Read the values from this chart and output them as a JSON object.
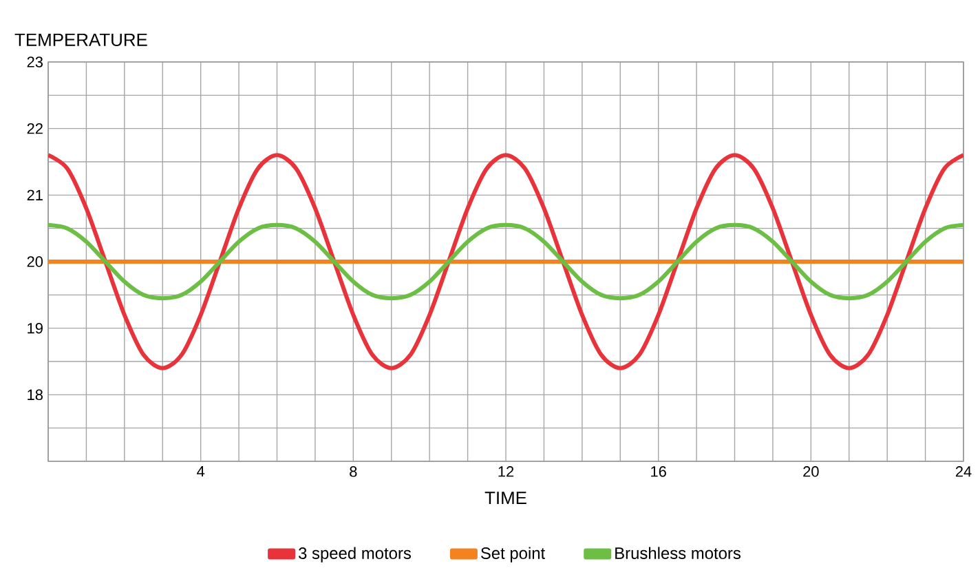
{
  "chart_data": {
    "type": "line",
    "ylabel": "TEMPERATURE",
    "xlabel": "TIME",
    "xlim": [
      0,
      24
    ],
    "ylim": [
      17,
      23
    ],
    "xticks": [
      {
        "value": 0,
        "label": null
      },
      {
        "value": 1,
        "label": null
      },
      {
        "value": 2,
        "label": null
      },
      {
        "value": 3,
        "label": null
      },
      4,
      {
        "value": 5,
        "label": null
      },
      {
        "value": 6,
        "label": null
      },
      {
        "value": 7,
        "label": null
      },
      8,
      {
        "value": 9,
        "label": null
      },
      {
        "value": 10,
        "label": null
      },
      {
        "value": 11,
        "label": null
      },
      12,
      {
        "value": 13,
        "label": null
      },
      {
        "value": 14,
        "label": null
      },
      {
        "value": 15,
        "label": null
      },
      16,
      {
        "value": 17,
        "label": null
      },
      {
        "value": 18,
        "label": null
      },
      {
        "value": 19,
        "label": null
      },
      20,
      {
        "value": 21,
        "label": null
      },
      {
        "value": 22,
        "label": null
      },
      {
        "value": 23,
        "label": null
      },
      24
    ],
    "yticks": [
      {
        "value": 17,
        "label": null
      },
      {
        "value": 17.5,
        "label": null
      },
      18,
      {
        "value": 18.5,
        "label": null
      },
      19,
      {
        "value": 19.5,
        "label": null
      },
      20,
      {
        "value": 20.5,
        "label": null
      },
      21,
      {
        "value": 21.5,
        "label": null
      },
      22,
      {
        "value": 22.5,
        "label": null
      },
      23
    ],
    "grid": true,
    "legend": "bottom",
    "series": [
      {
        "name": "3 speed motors",
        "color": "#e8333a",
        "x": [
          0,
          0.5,
          1,
          1.5,
          2,
          2.5,
          3,
          3.5,
          4,
          4.5,
          5,
          5.5,
          6,
          6.5,
          7,
          7.5,
          8,
          8.5,
          9,
          9.5,
          10,
          10.5,
          11,
          11.5,
          12,
          12.5,
          13,
          13.5,
          14,
          14.5,
          15,
          15.5,
          16,
          16.5,
          17,
          17.5,
          18,
          18.5,
          19,
          19.5,
          20,
          20.5,
          21,
          21.5,
          22,
          22.5,
          23,
          23.5,
          24
        ],
        "values": [
          21.6,
          21.4,
          20.8,
          20.0,
          19.2,
          18.6,
          18.4,
          18.6,
          19.2,
          20.0,
          20.8,
          21.4,
          21.6,
          21.4,
          20.8,
          20.0,
          19.2,
          18.6,
          18.4,
          18.6,
          19.2,
          20.0,
          20.8,
          21.4,
          21.6,
          21.4,
          20.8,
          20.0,
          19.2,
          18.6,
          18.4,
          18.6,
          19.2,
          20.0,
          20.8,
          21.4,
          21.6,
          21.4,
          20.8,
          20.0,
          19.2,
          18.6,
          18.4,
          18.6,
          19.2,
          20.0,
          20.8,
          21.4,
          21.6
        ]
      },
      {
        "name": "Set point",
        "color": "#f58220",
        "x": [
          0,
          24
        ],
        "values": [
          20,
          20
        ]
      },
      {
        "name": "Brushless motors",
        "color": "#6dbe45",
        "x": [
          0,
          0.5,
          1,
          1.5,
          2,
          2.5,
          3,
          3.5,
          4,
          4.5,
          5,
          5.5,
          6,
          6.5,
          7,
          7.5,
          8,
          8.5,
          9,
          9.5,
          10,
          10.5,
          11,
          11.5,
          12,
          12.5,
          13,
          13.5,
          14,
          14.5,
          15,
          15.5,
          16,
          16.5,
          17,
          17.5,
          18,
          18.5,
          19,
          19.5,
          20,
          20.5,
          21,
          21.5,
          22,
          22.5,
          23,
          23.5,
          24
        ],
        "values": [
          20.55,
          20.5,
          20.3,
          20.0,
          19.7,
          19.5,
          19.45,
          19.5,
          19.7,
          20.0,
          20.3,
          20.5,
          20.55,
          20.5,
          20.3,
          20.0,
          19.7,
          19.5,
          19.45,
          19.5,
          19.7,
          20.0,
          20.3,
          20.5,
          20.55,
          20.5,
          20.3,
          20.0,
          19.7,
          19.5,
          19.45,
          19.5,
          19.7,
          20.0,
          20.3,
          20.5,
          20.55,
          20.5,
          20.3,
          20.0,
          19.7,
          19.5,
          19.45,
          19.5,
          19.7,
          20.0,
          20.3,
          20.5,
          20.55
        ]
      }
    ]
  }
}
